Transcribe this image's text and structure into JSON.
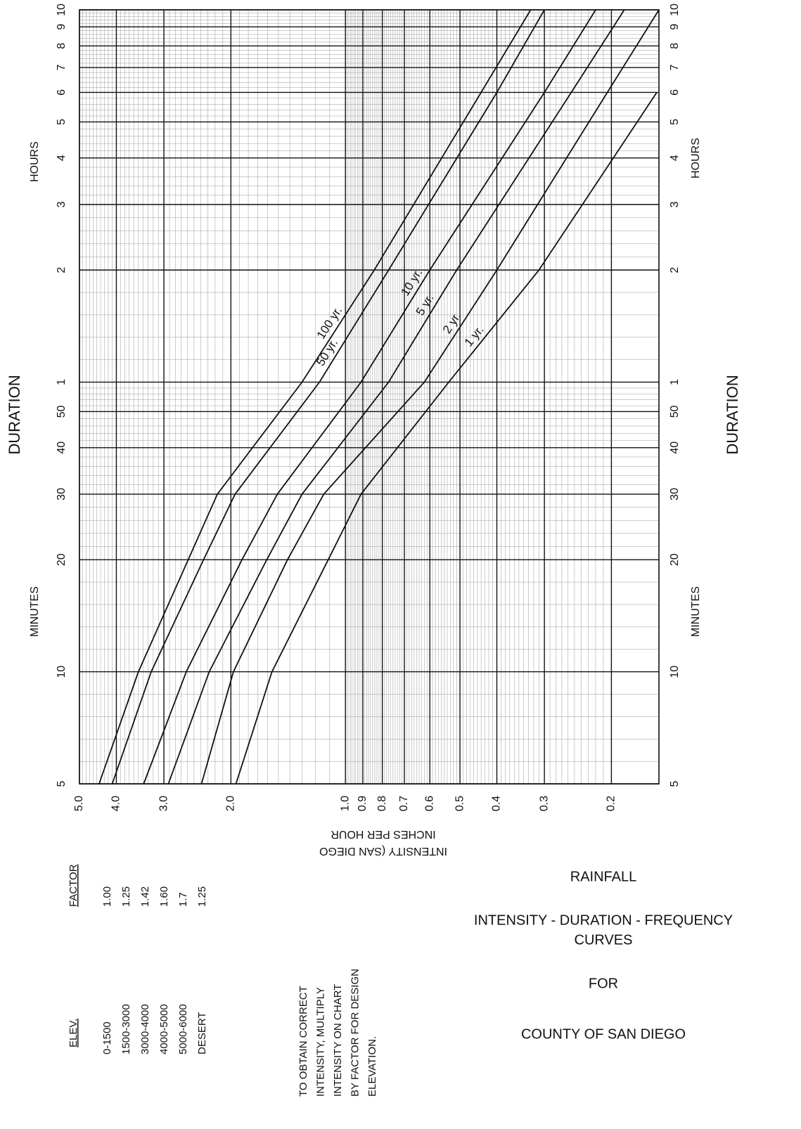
{
  "chart_data": {
    "type": "line",
    "log_x": true,
    "log_y": true,
    "grid": true,
    "color": "#111111",
    "y_axis_title": "DURATION",
    "y_axis_minutes_label": "MINUTES",
    "y_axis_hours_label": "HOURS",
    "x_axis_title_lines": [
      "INTENSITY (SAN DIEGO",
      "INCHES PER HOUR"
    ],
    "x": [
      5,
      10,
      20,
      30,
      60,
      120,
      360,
      600
    ],
    "xlim": [
      5,
      600
    ],
    "xticks": [
      5,
      10,
      20,
      30,
      40,
      50,
      {
        "value": 60,
        "label": "1"
      },
      {
        "value": 120,
        "label": "2"
      },
      {
        "value": 180,
        "label": "3"
      },
      {
        "value": 240,
        "label": "4"
      },
      {
        "value": 300,
        "label": "5"
      },
      {
        "value": 360,
        "label": "6"
      },
      {
        "value": 420,
        "label": "7"
      },
      {
        "value": 480,
        "label": "8"
      },
      {
        "value": 540,
        "label": "9"
      },
      {
        "value": 600,
        "label": "10"
      }
    ],
    "ylim": [
      5,
      0.15
    ],
    "yticks": [
      {
        "value": 5,
        "label": "5.0"
      },
      {
        "value": 4,
        "label": "4.0"
      },
      {
        "value": 3,
        "label": "3.0"
      },
      {
        "value": 2,
        "label": "2.0"
      },
      {
        "value": 1,
        "label": "1.0"
      },
      0.9,
      0.8,
      0.7,
      0.6,
      0.5,
      0.4,
      0.3,
      0.2
    ],
    "series": [
      {
        "name": "100 yr.",
        "values": [
          4.44,
          3.5,
          2.59,
          2.17,
          1.3,
          0.84,
          0.44,
          0.326
        ]
      },
      {
        "name": "50 yr.",
        "values": [
          4.1,
          3.24,
          2.36,
          1.95,
          1.17,
          0.77,
          0.4,
          0.3
        ]
      },
      {
        "name": "10 yr.",
        "values": [
          3.39,
          2.62,
          1.87,
          1.51,
          0.91,
          0.6,
          0.3,
          0.22
        ]
      },
      {
        "name": "5 yr.",
        "values": [
          2.92,
          2.28,
          1.61,
          1.3,
          0.77,
          0.51,
          0.255,
          0.185
        ]
      },
      {
        "name": "2 yr.",
        "values": [
          2.39,
          1.97,
          1.42,
          1.14,
          0.62,
          0.4,
          0.205,
          0.15
        ]
      },
      {
        "name": "1 yr.",
        "values": [
          1.94,
          1.56,
          1.11,
          0.91,
          0.535,
          0.31,
          0.152,
          null
        ]
      }
    ]
  },
  "elevation_table": {
    "headers": [
      "ELEV.",
      "FACTOR"
    ],
    "rows": [
      [
        "0-1500",
        "1.00"
      ],
      [
        "1500-3000",
        "1.25"
      ],
      [
        "3000-4000",
        "1.42"
      ],
      [
        "4000-5000",
        "1.60"
      ],
      [
        "5000-6000",
        "1.7"
      ],
      [
        "DESERT",
        "1.25"
      ]
    ]
  },
  "note_lines": [
    "TO OBTAIN CORRECT",
    "INTENSITY, MULTIPLY",
    "INTENSITY ON CHART",
    "BY FACTOR FOR DESIGN",
    "ELEVATION."
  ],
  "title_block": [
    "RAINFALL",
    "INTENSITY - DURATION - FREQUENCY",
    "CURVES",
    "FOR",
    "COUNTY OF SAN DIEGO"
  ]
}
